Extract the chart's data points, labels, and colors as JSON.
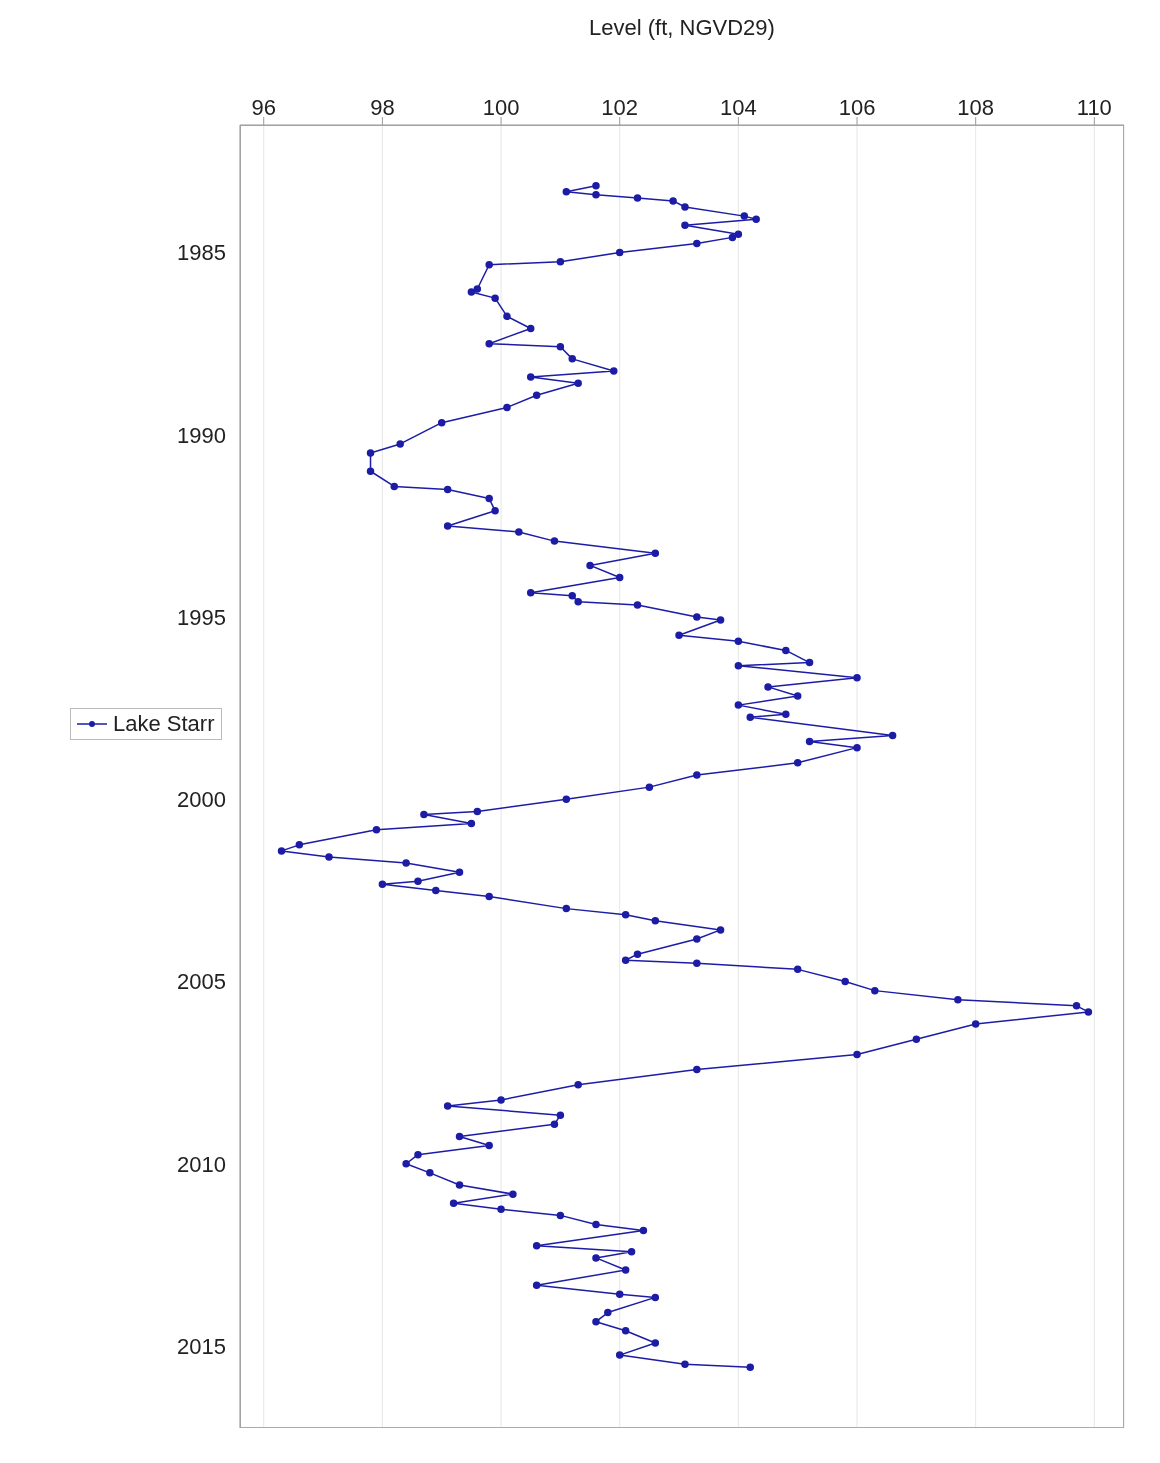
{
  "chart_data": {
    "type": "line",
    "orientation": "horizontal",
    "xlabel": "Level (ft, NGVD29)",
    "ylim": [
      "2017-04",
      "1981-07"
    ],
    "yticks": [
      "1985",
      "1990",
      "1995",
      "2000",
      "2005",
      "2010",
      "2015"
    ],
    "xlim": [
      95.6,
      110.5
    ],
    "xticks": [
      96,
      98,
      100,
      102,
      104,
      106,
      108,
      110
    ],
    "grid": "x",
    "legend": "left",
    "marker": "circle",
    "line_style": "solid",
    "x": [
      "1983-03",
      "1983-05",
      "1983-06",
      "1983-07",
      "1983-08",
      "1983-10",
      "1984-01",
      "1984-02",
      "1984-04",
      "1984-07",
      "1984-08",
      "1984-10",
      "1985-01",
      "1985-04",
      "1985-05",
      "1986-01",
      "1986-02",
      "1986-04",
      "1986-10",
      "1987-02",
      "1987-07",
      "1987-08",
      "1987-12",
      "1988-04",
      "1988-06",
      "1988-08",
      "1988-12",
      "1989-04",
      "1989-09",
      "1990-04",
      "1990-07",
      "1991-01",
      "1991-06",
      "1991-07",
      "1991-10",
      "1992-02",
      "1992-07",
      "1992-09",
      "1992-12",
      "1993-04",
      "1993-08",
      "1993-12",
      "1994-05",
      "1994-06",
      "1994-08",
      "1994-09",
      "1995-01",
      "1995-02",
      "1995-07",
      "1995-09",
      "1995-12",
      "1996-04",
      "1996-05",
      "1996-09",
      "1996-12",
      "1997-03",
      "1997-06",
      "1997-09",
      "1997-10",
      "1998-04",
      "1998-06",
      "1998-08",
      "1999-01",
      "1999-05",
      "1999-09",
      "2000-01",
      "2000-05",
      "2000-06",
      "2000-09",
      "2000-11",
      "2001-04",
      "2001-06",
      "2001-08",
      "2001-10",
      "2002-01",
      "2002-04",
      "2002-05",
      "2002-07",
      "2002-09",
      "2003-01",
      "2003-03",
      "2003-05",
      "2003-08",
      "2003-11",
      "2004-04",
      "2004-06",
      "2004-07",
      "2004-09",
      "2005-01",
      "2005-04",
      "2005-07",
      "2005-09",
      "2005-11",
      "2006-03",
      "2006-08",
      "2007-01",
      "2007-06",
      "2007-11",
      "2008-04",
      "2008-06",
      "2008-09",
      "2008-12",
      "2009-04",
      "2009-07",
      "2009-10",
      "2010-01",
      "2010-04",
      "2010-08",
      "2010-11",
      "2011-02",
      "2011-04",
      "2011-06",
      "2011-09",
      "2011-11",
      "2012-04",
      "2012-06",
      "2012-08",
      "2012-12",
      "2013-05",
      "2013-08",
      "2013-09",
      "2014-02",
      "2014-05",
      "2014-08",
      "2014-12",
      "2015-04",
      "2015-07",
      "2015-08"
    ],
    "series": [
      {
        "name": "Lake Starr",
        "color": "#1c1ca6",
        "values": [
          101.6,
          101.1,
          101.6,
          102.3,
          102.9,
          103.1,
          104.1,
          104.3,
          103.1,
          104.0,
          103.9,
          103.3,
          102.0,
          101.0,
          99.8,
          99.6,
          99.5,
          99.9,
          100.1,
          100.5,
          99.8,
          101.0,
          101.2,
          101.9,
          100.5,
          101.3,
          100.6,
          100.1,
          99.0,
          98.3,
          97.8,
          97.8,
          98.2,
          99.1,
          99.8,
          99.9,
          99.1,
          100.3,
          100.9,
          102.6,
          101.5,
          102.0,
          100.5,
          101.2,
          101.3,
          102.3,
          103.3,
          103.7,
          103.0,
          104.0,
          104.8,
          105.2,
          104.0,
          106.0,
          104.5,
          105.0,
          104.0,
          104.8,
          104.2,
          106.6,
          105.2,
          106.0,
          105.0,
          103.3,
          102.5,
          101.1,
          99.6,
          98.7,
          99.5,
          97.9,
          96.6,
          96.3,
          97.1,
          98.4,
          99.3,
          98.6,
          98.0,
          98.9,
          99.8,
          101.1,
          102.1,
          102.6,
          103.7,
          103.3,
          102.3,
          102.1,
          103.3,
          105.0,
          105.8,
          106.3,
          107.7,
          109.7,
          109.9,
          108.0,
          107.0,
          106.0,
          103.3,
          101.3,
          100.0,
          99.1,
          101.0,
          100.9,
          99.3,
          99.8,
          98.6,
          98.4,
          98.8,
          99.3,
          100.2,
          99.2,
          100.0,
          101.0,
          101.6,
          102.4,
          100.6,
          102.2,
          101.6,
          102.1,
          100.6,
          102.0,
          102.6,
          101.8,
          101.6,
          102.1,
          102.6,
          102.0,
          103.1,
          104.2
        ]
      }
    ]
  }
}
